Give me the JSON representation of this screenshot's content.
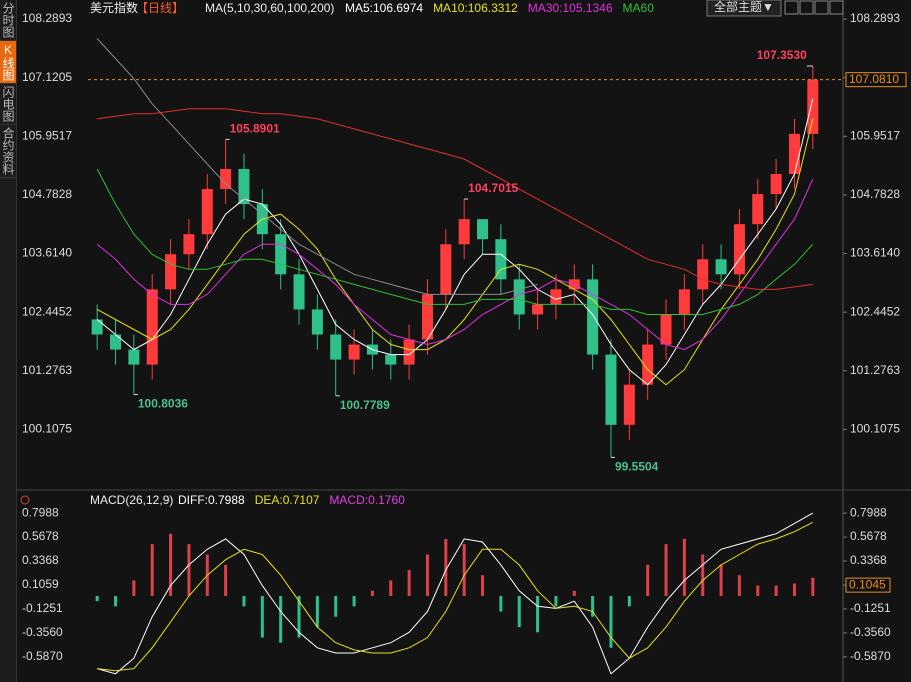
{
  "sidebar": {
    "tabs": [
      "分时图",
      "K线图",
      "闪电图",
      "合约资料"
    ],
    "active": 1
  },
  "toolbar": {
    "theme_button": "全部主题▼"
  },
  "chart_data": [
    {
      "type": "candlestick",
      "title": "美元指数",
      "period": "【日线】",
      "indicator": "MA(5,10,30,60,100,200)",
      "up_color": "#ff3b3b",
      "down_color": "#2ec28a",
      "open": [
        102.3,
        102.0,
        101.7,
        101.4,
        102.9,
        103.6,
        104.0,
        104.9,
        105.3,
        104.6,
        104.0,
        103.2,
        102.5,
        102.0,
        101.5,
        101.8,
        101.6,
        101.4,
        101.9,
        102.8,
        103.8,
        104.3,
        103.9,
        103.1,
        102.4,
        102.6,
        102.9,
        103.1,
        101.6,
        100.2,
        101.0,
        101.8,
        102.4,
        102.9,
        103.5,
        103.2,
        104.2,
        104.8,
        105.2,
        106.0
      ],
      "high": [
        102.6,
        102.3,
        102.0,
        103.2,
        103.9,
        104.3,
        105.2,
        105.8901,
        105.6,
        104.9,
        104.3,
        103.5,
        102.8,
        102.3,
        102.1,
        102.1,
        101.9,
        102.2,
        103.1,
        104.1,
        104.7015,
        104.3,
        104.2,
        103.4,
        102.9,
        103.2,
        103.4,
        103.4,
        101.9,
        101.3,
        102.1,
        102.7,
        103.2,
        103.8,
        103.8,
        104.5,
        105.1,
        105.5,
        106.3,
        107.353
      ],
      "low": [
        101.7,
        101.4,
        100.8036,
        101.1,
        102.6,
        103.3,
        103.7,
        104.6,
        104.3,
        103.7,
        102.9,
        102.2,
        101.7,
        100.7789,
        101.2,
        101.3,
        101.1,
        101.1,
        101.6,
        102.5,
        103.5,
        103.6,
        102.8,
        102.1,
        102.1,
        102.3,
        102.6,
        101.3,
        99.5504,
        99.9,
        100.7,
        101.5,
        102.1,
        102.6,
        102.9,
        102.9,
        103.9,
        104.5,
        104.9,
        105.7
      ],
      "close": [
        102.0,
        101.7,
        101.4,
        102.9,
        103.6,
        104.0,
        104.9,
        105.3,
        104.6,
        104.0,
        103.2,
        102.5,
        102.0,
        101.5,
        101.8,
        101.6,
        101.4,
        101.9,
        102.8,
        103.8,
        104.3,
        103.9,
        103.1,
        102.4,
        102.6,
        102.9,
        103.1,
        101.6,
        100.2,
        101.0,
        101.8,
        102.4,
        102.9,
        103.5,
        103.2,
        104.2,
        104.8,
        105.2,
        106.0,
        107.081
      ],
      "series": [
        {
          "name": "MA5:106.6974",
          "color": "#ffffff",
          "values": [
            102.3,
            102.0,
            101.7,
            101.9,
            102.4,
            103.1,
            103.8,
            104.4,
            104.7,
            104.6,
            104.2,
            103.6,
            102.9,
            102.2,
            101.9,
            101.7,
            101.6,
            101.6,
            101.9,
            102.5,
            103.2,
            103.6,
            103.6,
            103.3,
            102.9,
            102.7,
            102.8,
            102.4,
            101.8,
            101.3,
            101.0,
            101.4,
            102.0,
            102.6,
            103.0,
            103.5,
            104.0,
            104.5,
            105.2,
            106.7
          ]
        },
        {
          "name": "MA10:106.3312",
          "color": "#e8e020",
          "values": [
            102.5,
            102.3,
            102.1,
            101.9,
            102.1,
            102.5,
            103.0,
            103.5,
            104.0,
            104.3,
            104.4,
            104.1,
            103.7,
            103.1,
            102.6,
            102.1,
            101.8,
            101.7,
            101.7,
            101.9,
            102.3,
            102.8,
            103.3,
            103.4,
            103.3,
            103.1,
            102.9,
            102.7,
            102.3,
            101.8,
            101.3,
            101.0,
            101.3,
            101.9,
            102.5,
            103.0,
            103.5,
            104.1,
            104.8,
            106.3
          ]
        },
        {
          "name": "MA30:105.1346",
          "color": "#e030e0",
          "values": [
            103.8,
            103.5,
            103.1,
            102.8,
            102.6,
            102.6,
            102.8,
            103.2,
            103.6,
            103.8,
            103.8,
            103.6,
            103.3,
            103.0,
            102.6,
            102.3,
            102.0,
            101.9,
            101.8,
            101.9,
            102.1,
            102.4,
            102.6,
            102.8,
            102.9,
            103.1,
            103.0,
            102.8,
            102.6,
            102.4,
            102.1,
            101.8,
            101.7,
            101.9,
            102.3,
            102.8,
            103.3,
            103.8,
            104.3,
            105.1
          ]
        },
        {
          "name": "MA60",
          "color": "#30c030",
          "values": [
            105.3,
            104.6,
            104.0,
            103.6,
            103.4,
            103.3,
            103.3,
            103.4,
            103.5,
            103.5,
            103.4,
            103.3,
            103.2,
            103.1,
            103.0,
            102.9,
            102.8,
            102.7,
            102.6,
            102.6,
            102.6,
            102.7,
            102.7,
            102.7,
            102.6,
            102.6,
            102.6,
            102.6,
            102.5,
            102.5,
            102.4,
            102.4,
            102.4,
            102.4,
            102.5,
            102.6,
            102.8,
            103.1,
            103.4,
            103.8
          ]
        },
        {
          "color": "#8a8a8a",
          "values": [
            107.9,
            107.5,
            107.1,
            106.6,
            106.2,
            105.8,
            105.4,
            105.0,
            104.7,
            104.4,
            104.1,
            103.8,
            103.6,
            103.4,
            103.2,
            103.1,
            103.0,
            102.9,
            102.8,
            102.8,
            102.8,
            102.8,
            102.8,
            102.9,
            103.0,
            null,
            null,
            null,
            null,
            null,
            null,
            null,
            null,
            null,
            null,
            null,
            null,
            null,
            null,
            null
          ]
        },
        {
          "color": "#e03030",
          "values": [
            106.3,
            106.35,
            106.4,
            106.4,
            106.45,
            106.5,
            106.5,
            106.5,
            106.45,
            106.4,
            106.4,
            106.35,
            106.3,
            106.2,
            106.1,
            106.0,
            105.9,
            105.8,
            105.7,
            105.6,
            105.5,
            105.3,
            105.1,
            104.9,
            104.7,
            104.5,
            104.3,
            104.1,
            103.9,
            103.7,
            103.5,
            103.4,
            103.3,
            103.1,
            103.0,
            102.95,
            102.9,
            102.9,
            102.95,
            103.0
          ]
        }
      ],
      "annotations": [
        {
          "x": 2,
          "value": 100.8036,
          "label": "100.8036",
          "kind": "low"
        },
        {
          "x": 7,
          "value": 105.8901,
          "label": "105.8901",
          "kind": "high"
        },
        {
          "x": 13,
          "value": 100.7789,
          "label": "100.7789",
          "kind": "low"
        },
        {
          "x": 20,
          "value": 104.7015,
          "label": "104.7015",
          "kind": "high"
        },
        {
          "x": 28,
          "value": 99.5504,
          "label": "99.5504",
          "kind": "low"
        },
        {
          "x": 39,
          "value": 107.353,
          "label": "107.3530",
          "kind": "high"
        }
      ],
      "last_price": {
        "value": 107.081,
        "label": "107.0810"
      },
      "ylim": [
        98.94,
        108.39
      ],
      "yticks": [
        108.2893,
        107.1205,
        105.9517,
        104.7828,
        {
          "value": 103.614,
          "label": "103.6140"
        },
        102.4452,
        101.2763,
        100.1075
      ]
    },
    {
      "type": "macd",
      "title": "MACD(26,12,9)",
      "series": [
        {
          "name": "DIFF:0.7988",
          "color": "#ffffff",
          "values": [
            -0.7,
            -0.75,
            -0.6,
            -0.2,
            0.1,
            0.3,
            0.45,
            0.55,
            0.4,
            0.1,
            -0.15,
            -0.35,
            -0.5,
            -0.55,
            -0.55,
            -0.5,
            -0.45,
            -0.35,
            -0.15,
            0.25,
            0.55,
            0.52,
            0.3,
            0.05,
            -0.1,
            -0.12,
            -0.05,
            -0.3,
            -0.75,
            -0.6,
            -0.3,
            -0.05,
            0.15,
            0.3,
            0.45,
            0.5,
            0.55,
            0.6,
            0.7,
            0.7988
          ]
        },
        {
          "name": "DEA:0.7107",
          "color": "#e8e020",
          "values": [
            -0.7,
            -0.72,
            -0.7,
            -0.5,
            -0.25,
            0.0,
            0.2,
            0.35,
            0.45,
            0.4,
            0.2,
            -0.05,
            -0.3,
            -0.45,
            -0.52,
            -0.55,
            -0.55,
            -0.5,
            -0.4,
            -0.15,
            0.2,
            0.45,
            0.45,
            0.3,
            0.05,
            -0.12,
            -0.1,
            -0.15,
            -0.4,
            -0.6,
            -0.5,
            -0.3,
            -0.05,
            0.15,
            0.3,
            0.4,
            0.5,
            0.55,
            0.62,
            0.7107
          ]
        }
      ],
      "histogram": {
        "name": "MACD:0.1760",
        "color": "#e040e0",
        "up_color": "#e0404a",
        "down_color": "#2ec28a",
        "values": [
          -0.05,
          -0.1,
          0.15,
          0.5,
          0.6,
          0.5,
          0.4,
          0.3,
          -0.1,
          -0.4,
          -0.45,
          -0.4,
          -0.3,
          -0.2,
          -0.1,
          0.05,
          0.15,
          0.25,
          0.4,
          0.55,
          0.5,
          0.2,
          -0.15,
          -0.3,
          -0.35,
          -0.1,
          0.05,
          -0.2,
          -0.5,
          -0.1,
          0.3,
          0.5,
          0.55,
          0.4,
          0.3,
          0.2,
          0.1,
          0.1,
          0.12,
          0.176
        ]
      },
      "cursor": 0.1045,
      "ylim": [
        -0.81,
        0.877
      ],
      "yticks": [
        0.7988,
        0.5678,
        0.3368,
        0.1059,
        -0.1251,
        {
          "value": -0.356,
          "label": "-0.3560"
        },
        {
          "value": -0.587,
          "label": "-0.5870"
        }
      ]
    }
  ]
}
